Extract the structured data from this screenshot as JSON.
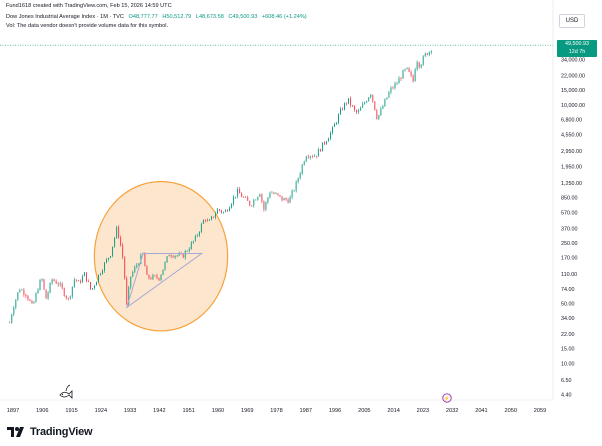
{
  "header": {
    "line1": "Fund1618 created with TradingView.com, Feb 15, 2026 14:59 UTC",
    "symbol": "Dow Jones Industrial Average Index · 1M · TVC",
    "open": "O48,777.77",
    "high": "H50,512.79",
    "low": "L48,673.58",
    "close": "C49,500.93",
    "change": "+608.46 (+1.24%)",
    "volume_note": "Vol: The data vendor doesn't provide volume data for this symbol."
  },
  "price_scale": {
    "currency": "USD",
    "last_price": "49,500.93",
    "countdown": "12d 7h"
  },
  "logo": {
    "text": "TradingView"
  },
  "colors": {
    "up": "#089981",
    "down": "#f23645",
    "circle_fill": "#fbd2a5",
    "circle_stroke": "#f7a23a",
    "triangle": "#a9a7d6"
  },
  "icons": {
    "corner": "fish-icon",
    "event": "event-marker-icon"
  },
  "chart_data": {
    "type": "line",
    "title": "Dow Jones Industrial Average Index · 1M · TVC",
    "y_scale": "log",
    "ylim": [
      4,
      60000
    ],
    "xlim": [
      1893,
      2063
    ],
    "x_ticks": [
      "1897",
      "1906",
      "1915",
      "1924",
      "1933",
      "1942",
      "1951",
      "1960",
      "1969",
      "1978",
      "1987",
      "1996",
      "2005",
      "2014",
      "2023",
      "2032",
      "2041",
      "2050",
      "2059"
    ],
    "y_ticks": [
      "49,500.93",
      "34,000.00",
      "22,000.00",
      "15,000.00",
      "10,000.00",
      "6,800.00",
      "4,550.00",
      "2,950.00",
      "1,950.00",
      "1,250.00",
      "850.00",
      "570.00",
      "370.00",
      "250.00",
      "170.00",
      "110.00",
      "74.00",
      "50.00",
      "34.00",
      "22.00",
      "15.00",
      "10.00",
      "6.50",
      "4.40"
    ],
    "grid": false,
    "legend": "none",
    "series": [
      {
        "x": [
          1896,
          1897,
          1899,
          1901,
          1903,
          1905,
          1906,
          1907,
          1909,
          1911,
          1914,
          1916,
          1917,
          1919,
          1921,
          1924,
          1927,
          1929,
          1930,
          1931,
          1932,
          1933,
          1935,
          1937,
          1938,
          1942,
          1945,
          1949,
          1953,
          1956,
          1957,
          1960,
          1962,
          1966,
          1970,
          1973,
          1974,
          1976,
          1980,
          1982,
          1984,
          1987,
          1990,
          1995,
          1998,
          2000,
          2002,
          2003,
          2007,
          2009,
          2013,
          2015,
          2017,
          2018,
          2020,
          2021,
          2022,
          2024,
          2025,
          2026
        ],
        "y": [
          30,
          45,
          75,
          65,
          45,
          85,
          95,
          55,
          95,
          85,
          55,
          100,
          85,
          110,
          70,
          120,
          190,
          380,
          250,
          150,
          45,
          100,
          140,
          190,
          100,
          100,
          190,
          175,
          280,
          500,
          420,
          620,
          560,
          990,
          700,
          1000,
          600,
          1000,
          800,
          800,
          1200,
          2700,
          2600,
          5000,
          9000,
          11500,
          8500,
          8000,
          14000,
          7000,
          15000,
          18000,
          24000,
          26000,
          19000,
          35000,
          29000,
          40000,
          42000,
          49500
        ]
      }
    ],
    "annotations": [
      {
        "type": "ellipse",
        "x_range": [
          1922,
          1963
        ],
        "y_range": [
          24,
          1300
        ]
      },
      {
        "type": "triangle",
        "points": [
          [
            1932,
            45
          ],
          [
            1937,
            190
          ],
          [
            1955,
            190
          ]
        ]
      }
    ]
  }
}
